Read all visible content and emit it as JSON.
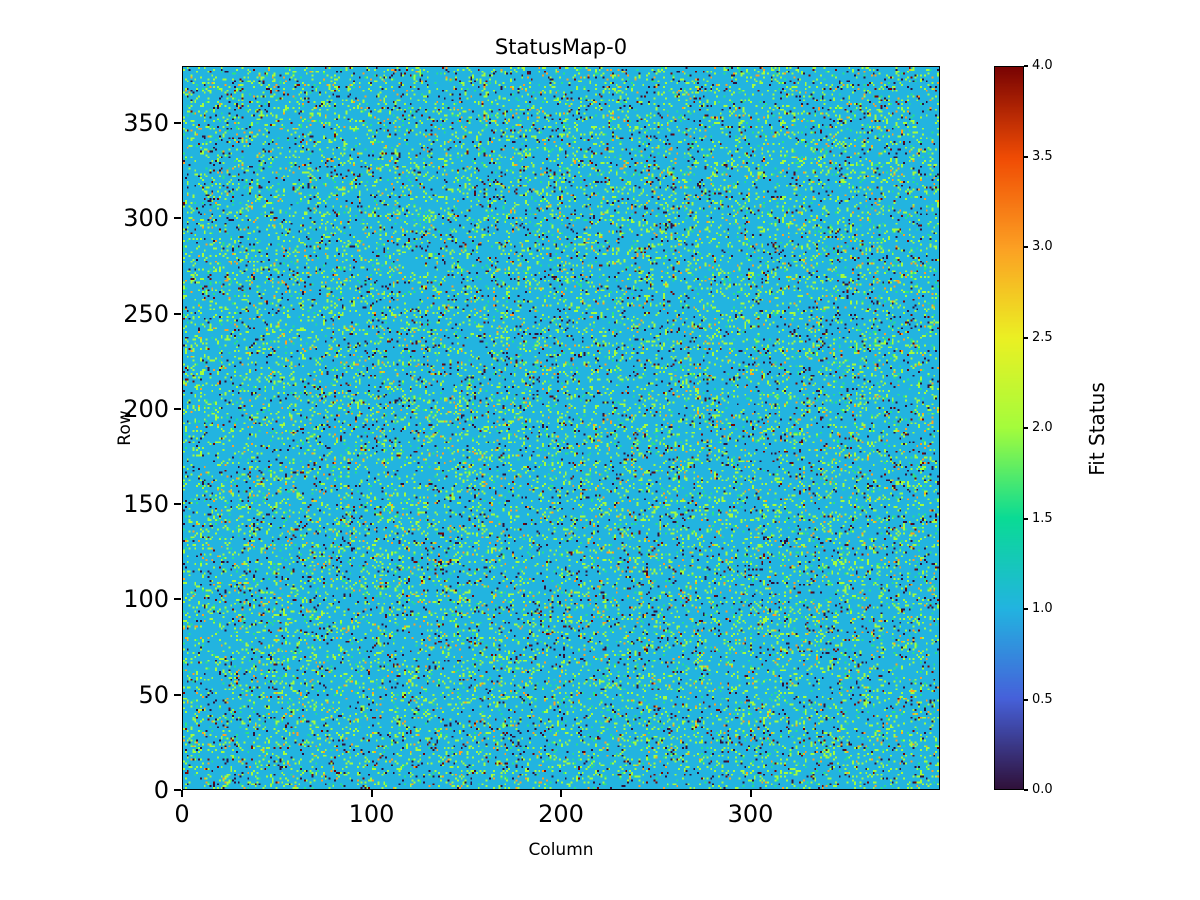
{
  "figure": {
    "background_color": "#ffffff",
    "heatmap_base_color": "#22b4e0"
  },
  "chart_data": {
    "type": "heatmap",
    "title": "StatusMap-0",
    "xlabel": "Column",
    "ylabel": "Row",
    "colorbar_label": "Fit Status",
    "grid": {
      "cols": 400,
      "rows": 380
    },
    "xlim": [
      0,
      400
    ],
    "ylim": [
      0,
      380
    ],
    "x_ticks": [
      0,
      100,
      200,
      300
    ],
    "y_ticks": [
      0,
      50,
      100,
      150,
      200,
      250,
      300,
      350
    ],
    "colorbar_range": [
      0.0,
      4.0
    ],
    "colorbar_ticks": [
      0.0,
      0.5,
      1.0,
      1.5,
      2.0,
      2.5,
      3.0,
      3.5,
      4.0
    ],
    "colormap": "turbo",
    "colormap_stops": [
      [
        0.0,
        48,
        18,
        59
      ],
      [
        0.125,
        70,
        97,
        218
      ],
      [
        0.25,
        34,
        180,
        224
      ],
      [
        0.375,
        10,
        219,
        149
      ],
      [
        0.5,
        164,
        252,
        60
      ],
      [
        0.625,
        235,
        240,
        35
      ],
      [
        0.75,
        252,
        160,
        35
      ],
      [
        0.875,
        240,
        76,
        4
      ],
      [
        1.0,
        122,
        4,
        3
      ]
    ],
    "value_distribution": [
      {
        "value": 1.0,
        "weight": 0.83
      },
      {
        "value": 2.0,
        "weight": 0.095
      },
      {
        "value": 1.6,
        "weight": 0.02
      },
      {
        "value": 0.0,
        "weight": 0.03
      },
      {
        "value": 3.0,
        "weight": 0.015
      },
      {
        "value": 4.0,
        "weight": 0.01
      }
    ],
    "random_seed": 42
  }
}
